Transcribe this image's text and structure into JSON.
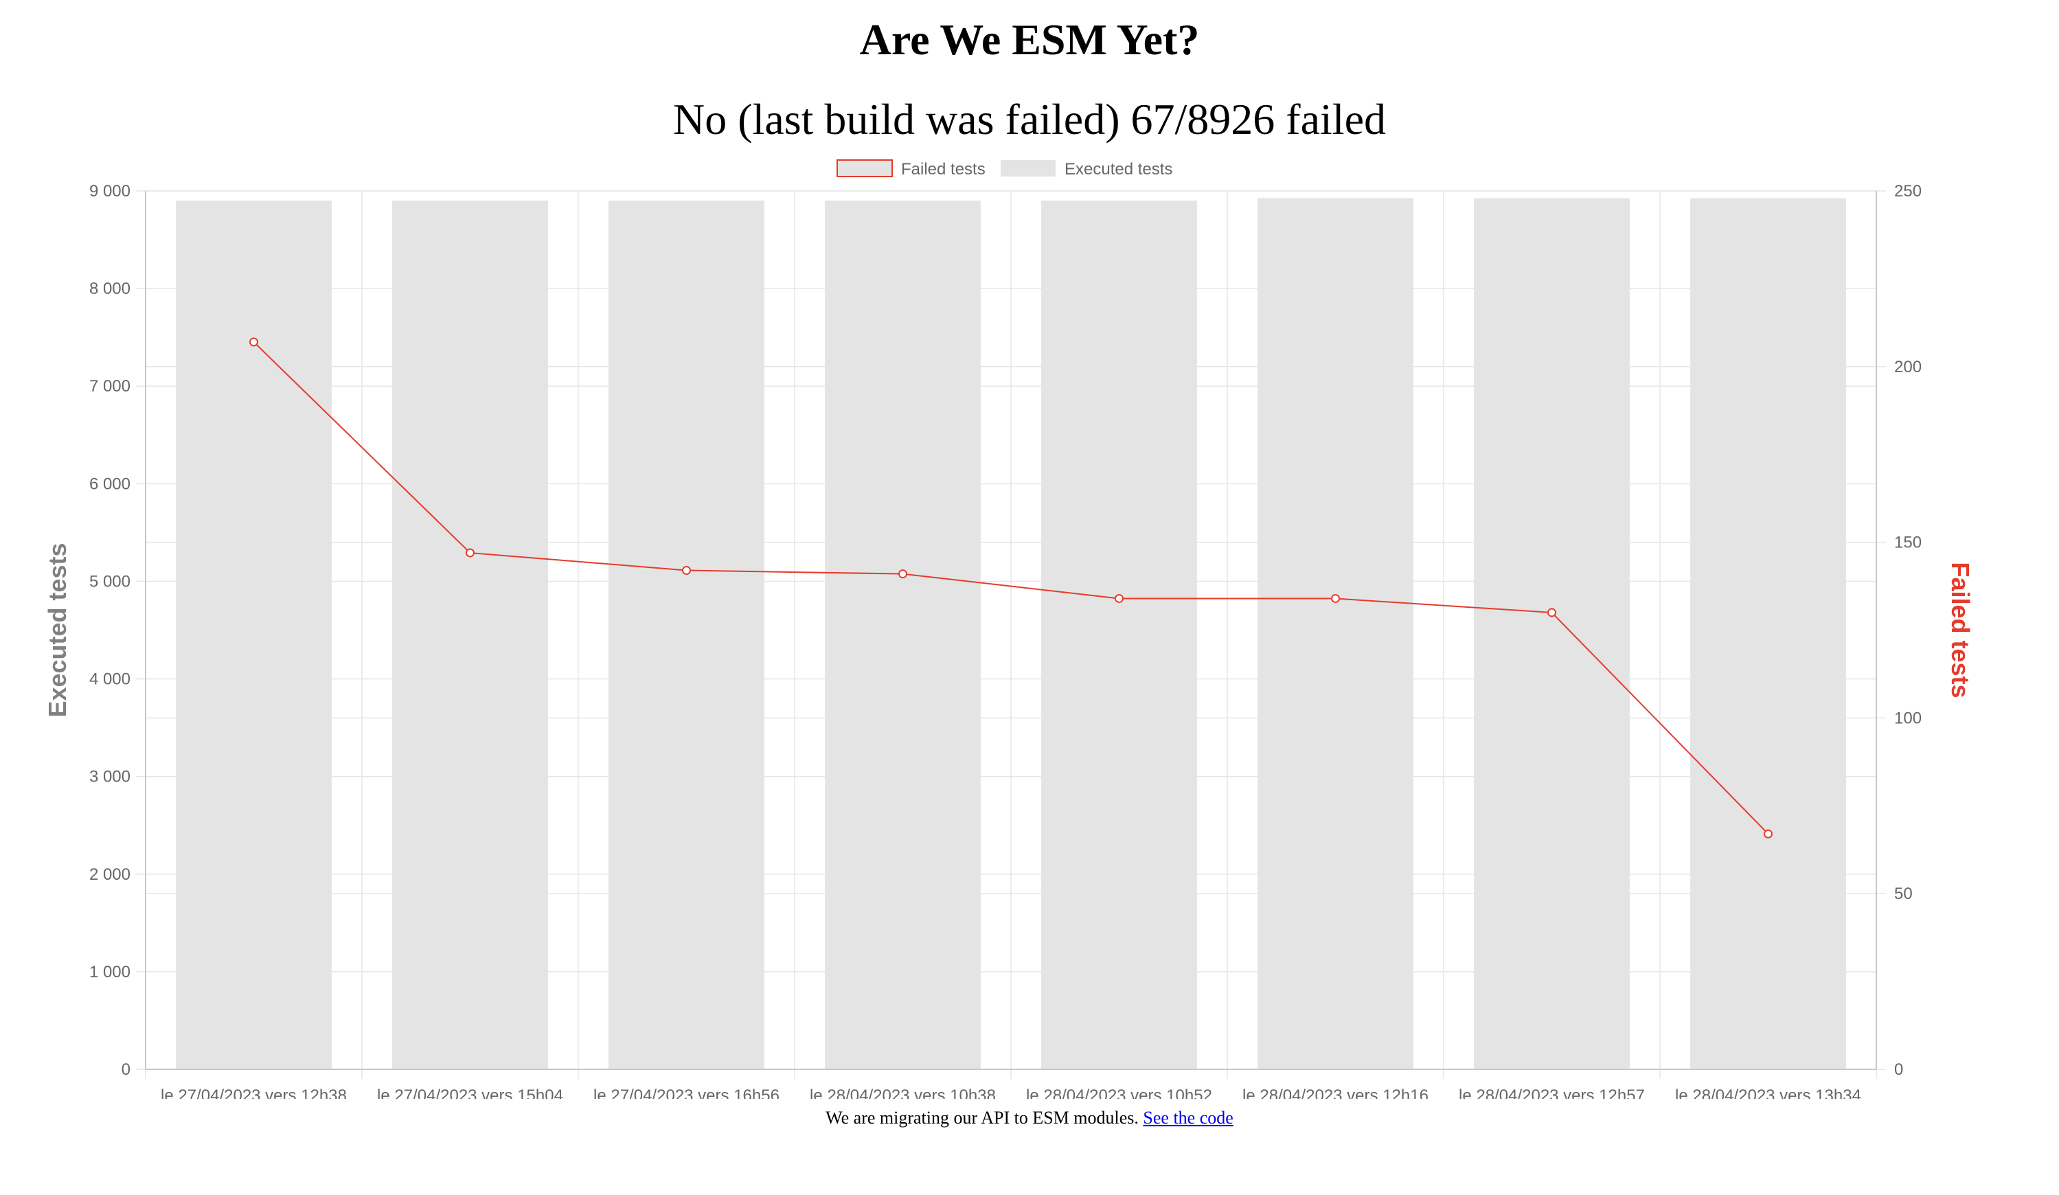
{
  "page": {
    "title": "Are We ESM Yet?",
    "status": "No (last build was failed) 67/8926 failed",
    "footer_text": "We are migrating our API to ESM modules.",
    "footer_link": "See the code"
  },
  "chart_data": {
    "type": "bar",
    "categories": [
      "le 27/04/2023 vers 12h38",
      "le 27/04/2023 vers 15h04",
      "le 27/04/2023 vers 16h56",
      "le 28/04/2023 vers 10h38",
      "le 28/04/2023 vers 10h52",
      "le 28/04/2023 vers 12h16",
      "le 28/04/2023 vers 12h57",
      "le 28/04/2023 vers 13h34"
    ],
    "series": [
      {
        "name": "Failed tests",
        "type": "line",
        "axis": "right",
        "color": "#e53b2c",
        "values": [
          207,
          147,
          142,
          141,
          134,
          134,
          130,
          67
        ]
      },
      {
        "name": "Executed tests",
        "type": "bar",
        "axis": "left",
        "color": "#e4e4e4",
        "values": [
          8900,
          8900,
          8900,
          8900,
          8900,
          8926,
          8926,
          8926
        ]
      }
    ],
    "y_left": {
      "label": "Executed tests",
      "range": [
        0,
        9000
      ],
      "ticks": [
        "0",
        "1 000",
        "2 000",
        "3 000",
        "4 000",
        "5 000",
        "6 000",
        "7 000",
        "8 000",
        "9 000"
      ],
      "color": "#808080"
    },
    "y_right": {
      "label": "Failed tests",
      "range": [
        0,
        250
      ],
      "ticks": [
        "0",
        "50",
        "100",
        "150",
        "200",
        "250"
      ],
      "color": "#e53b2c"
    },
    "grid": true,
    "legend_position": "top-center"
  }
}
